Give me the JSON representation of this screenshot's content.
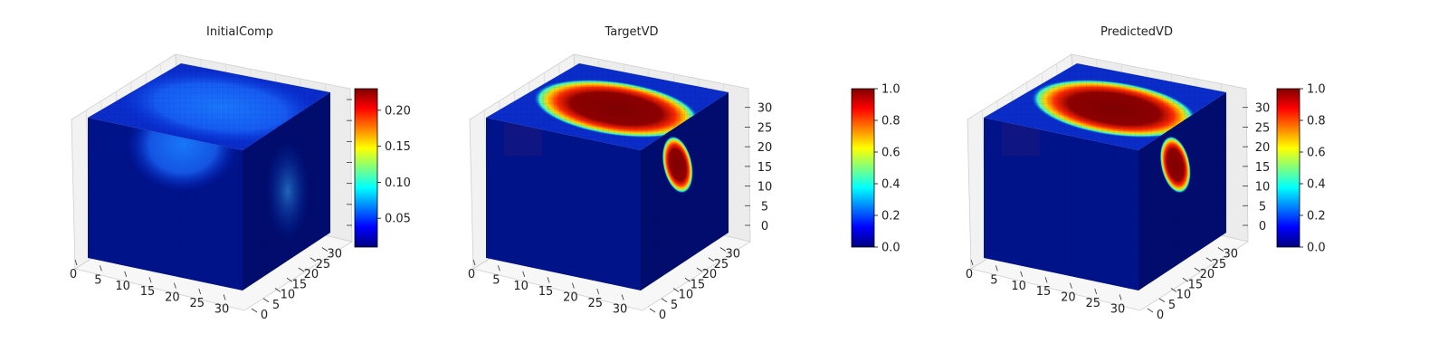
{
  "colors": {
    "jet": [
      "#00007f",
      "#0000ff",
      "#007fff",
      "#00ffff",
      "#7fff7f",
      "#ffff00",
      "#ff7f00",
      "#ff0000",
      "#7f0000"
    ],
    "cube_base": "#001a8f",
    "pane": "#f2f2f2",
    "grid": "#d9d9d9"
  },
  "chart_data": [
    {
      "type": "3d-voxel",
      "title": "InitialComp",
      "x_ticks": [
        "0",
        "5",
        "10",
        "15",
        "20",
        "25",
        "30"
      ],
      "y_ticks": [
        "0",
        "5",
        "10",
        "15",
        "20",
        "25",
        "30"
      ],
      "z_ticks": [],
      "xlim": [
        0,
        32
      ],
      "ylim": [
        0,
        32
      ],
      "zlim": [
        0,
        32
      ],
      "colorbar": {
        "min": 0.01,
        "max": 0.23,
        "ticks": [
          "0.05",
          "0.10",
          "0.15",
          "0.20"
        ],
        "tick_values": [
          0.05,
          0.1,
          0.15,
          0.2
        ]
      },
      "peak_value": 0.1
    },
    {
      "type": "3d-voxel",
      "title": "TargetVD",
      "x_ticks": [
        "0",
        "5",
        "10",
        "15",
        "20",
        "25",
        "30"
      ],
      "y_ticks": [
        "0",
        "5",
        "10",
        "15",
        "20",
        "25",
        "30"
      ],
      "z_ticks": [
        "0",
        "5",
        "10",
        "15",
        "20",
        "25",
        "30"
      ],
      "xlim": [
        0,
        32
      ],
      "ylim": [
        0,
        32
      ],
      "zlim": [
        0,
        32
      ],
      "colorbar": {
        "min": 0.0,
        "max": 1.0,
        "ticks": [
          "0.0",
          "0.2",
          "0.4",
          "0.6",
          "0.8",
          "1.0"
        ],
        "tick_values": [
          0.0,
          0.2,
          0.4,
          0.6,
          0.8,
          1.0
        ]
      },
      "peak_value": 1.0
    },
    {
      "type": "3d-voxel",
      "title": "PredictedVD",
      "x_ticks": [
        "0",
        "5",
        "10",
        "15",
        "20",
        "25",
        "30"
      ],
      "y_ticks": [
        "0",
        "5",
        "10",
        "15",
        "20",
        "25",
        "30"
      ],
      "z_ticks": [
        "0",
        "5",
        "10",
        "15",
        "20",
        "25",
        "30"
      ],
      "xlim": [
        0,
        32
      ],
      "ylim": [
        0,
        32
      ],
      "zlim": [
        0,
        32
      ],
      "colorbar": {
        "min": 0.0,
        "max": 1.0,
        "ticks": [
          "0.0",
          "0.2",
          "0.4",
          "0.6",
          "0.8",
          "1.0"
        ],
        "tick_values": [
          0.0,
          0.2,
          0.4,
          0.6,
          0.8,
          1.0
        ]
      },
      "peak_value": 1.0
    }
  ]
}
